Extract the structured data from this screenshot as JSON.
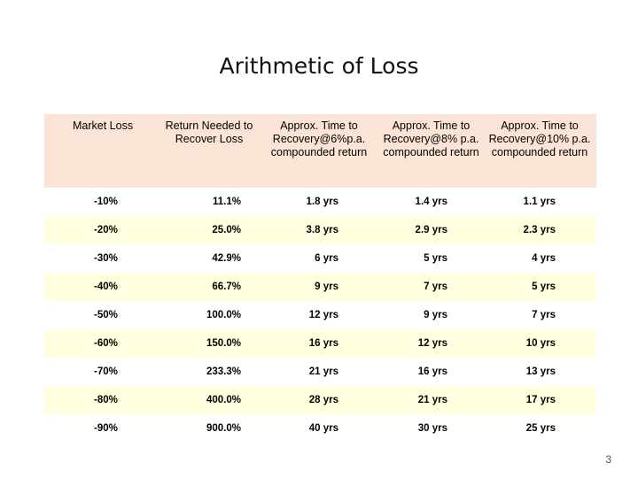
{
  "slide": {
    "title": "Arithmetic of Loss",
    "page_number": "3"
  },
  "table": {
    "headers": [
      "Market Loss",
      "Return Needed to Recover Loss",
      "Approx. Time to Recovery@6%p.a. compounded return",
      "Approx. Time to Recovery@8% p.a. compounded return",
      "Approx. Time to Recovery@10% p.a. compounded return"
    ],
    "rows": [
      [
        "-10%",
        "11.1%",
        "1.8 yrs",
        "1.4 yrs",
        "1.1 yrs"
      ],
      [
        "-20%",
        "25.0%",
        "3.8 yrs",
        "2.9 yrs",
        "2.3 yrs"
      ],
      [
        "-30%",
        "42.9%",
        "6 yrs",
        "5 yrs",
        "4 yrs"
      ],
      [
        "-40%",
        "66.7%",
        "9 yrs",
        "7 yrs",
        "5 yrs"
      ],
      [
        "-50%",
        "100.0%",
        "12 yrs",
        "9 yrs",
        "7 yrs"
      ],
      [
        "-60%",
        "150.0%",
        "16 yrs",
        "12 yrs",
        "10 yrs"
      ],
      [
        "-70%",
        "233.3%",
        "21 yrs",
        "16 yrs",
        "13 yrs"
      ],
      [
        "-80%",
        "400.0%",
        "28 yrs",
        "21 yrs",
        "17 yrs"
      ],
      [
        "-90%",
        "900.0%",
        "40 yrs",
        "30 yrs",
        "25 yrs"
      ]
    ]
  },
  "colors": {
    "header_fill": "#fbe4d5",
    "alt_row_fill": "#ffffdf"
  }
}
